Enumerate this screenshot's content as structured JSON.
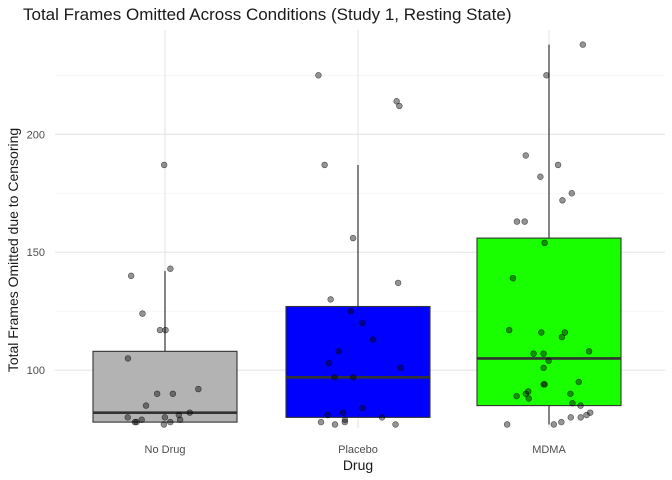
{
  "chart_data": {
    "type": "boxplot",
    "title": "Total Frames Omitted Across Conditions (Study 1, Resting State)",
    "xlabel": "Drug",
    "ylabel": "Total Frames Omitted due to Censoring",
    "yticks": [
      100,
      150,
      200
    ],
    "ylim": [
      75,
      244
    ],
    "grid": true,
    "categories": [
      "No Drug",
      "Placebo",
      "MDMA"
    ],
    "colors": {
      "No Drug": "#b3b3b3",
      "Placebo": "#0000ff",
      "MDMA": "#1aff00"
    },
    "boxes": [
      {
        "category": "No Drug",
        "q1": 78,
        "median": 82,
        "q3": 108,
        "whisker_low": 78,
        "whisker_high": 142
      },
      {
        "category": "Placebo",
        "q1": 80,
        "median": 97,
        "q3": 127,
        "whisker_low": 80,
        "whisker_high": 187
      },
      {
        "category": "MDMA",
        "q1": 85,
        "median": 105,
        "q3": 156,
        "whisker_low": 77,
        "whisker_high": 238
      }
    ],
    "points": {
      "No Drug": [
        187,
        143,
        140,
        124,
        117,
        117,
        105,
        92,
        90,
        90,
        85,
        82,
        81,
        80,
        80,
        79,
        79,
        78,
        78,
        77,
        78
      ],
      "Placebo": [
        225,
        214,
        212,
        187,
        156,
        137,
        130,
        125,
        120,
        113,
        108,
        103,
        101,
        97,
        97,
        84,
        82,
        81,
        80,
        79,
        78,
        78,
        77,
        77
      ],
      "MDMA": [
        238,
        225,
        191,
        187,
        182,
        175,
        172,
        163,
        163,
        154,
        139,
        117,
        116,
        116,
        114,
        108,
        107,
        107,
        104,
        101,
        95,
        94,
        94,
        91,
        90,
        90,
        89,
        88,
        86,
        85,
        82,
        81,
        80,
        80,
        78,
        77,
        77
      ]
    }
  }
}
